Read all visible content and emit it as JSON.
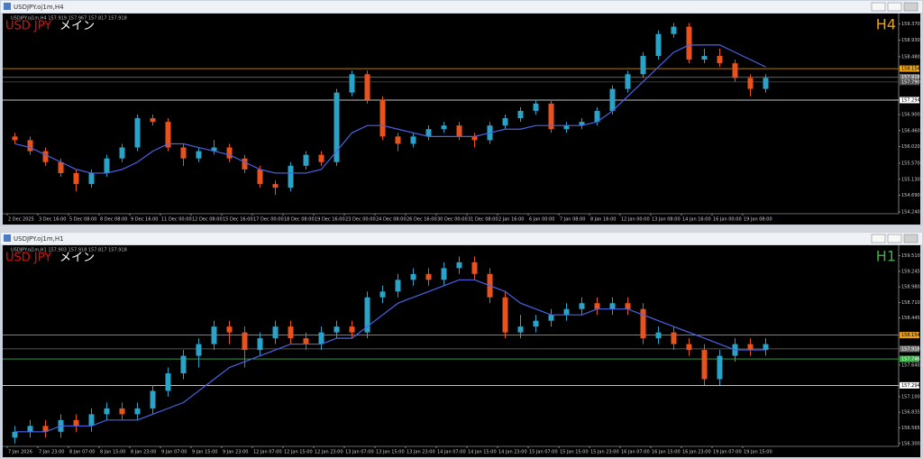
{
  "chart_data": [
    {
      "type": "candlestick",
      "window_title": "USDJPY.oj1m,H4",
      "info": "USDJPY.oj1m,H4  157.919 157.967 157.817 157.918",
      "symbol": "USD JPY",
      "label": "メイン",
      "timeframe": "H4",
      "timeframe_color": "#e8a21c",
      "up_color": "#2aa3c8",
      "down_color": "#e8521c",
      "ylim": [
        154.19,
        159.61
      ],
      "yticks": [
        {
          "value": 159.37,
          "label": "159.370"
        },
        {
          "value": 158.93,
          "label": "158.930"
        },
        {
          "value": 158.48,
          "label": "158.480"
        },
        {
          "value": 156.9,
          "label": "156.900"
        },
        {
          "value": 156.46,
          "label": "156.460"
        },
        {
          "value": 156.02,
          "label": "156.020"
        },
        {
          "value": 155.57,
          "label": "155.570"
        },
        {
          "value": 155.13,
          "label": "155.130"
        },
        {
          "value": 154.69,
          "label": "154.690"
        },
        {
          "value": 154.24,
          "label": "154.240"
        }
      ],
      "xticks": [
        {
          "value": 0,
          "label": "2 Dec 2025"
        },
        {
          "value": 2,
          "label": "3 Dec 16:00"
        },
        {
          "value": 4,
          "label": "5 Dec 08:00"
        },
        {
          "value": 6,
          "label": "8 Dec 08:00"
        },
        {
          "value": 8,
          "label": "9 Dec 16:00"
        },
        {
          "value": 10,
          "label": "11 Dec 00:00"
        },
        {
          "value": 12,
          "label": "12 Dec 08:00"
        },
        {
          "value": 14,
          "label": "15 Dec 16:00"
        },
        {
          "value": 16,
          "label": "17 Dec 00:00"
        },
        {
          "value": 18,
          "label": "18 Dec 08:00"
        },
        {
          "value": 20,
          "label": "19 Dec 16:00"
        },
        {
          "value": 22,
          "label": "23 Dec 00:00"
        },
        {
          "value": 24,
          "label": "24 Dec 08:00"
        },
        {
          "value": 26,
          "label": "26 Dec 16:00"
        },
        {
          "value": 28,
          "label": "30 Dec 00:00"
        },
        {
          "value": 30,
          "label": "31 Dec 08:00"
        },
        {
          "value": 32,
          "label": "2 Jan 16:00"
        },
        {
          "value": 34,
          "label": "6 Jan 00:00"
        },
        {
          "value": 36,
          "label": "7 Jan 08:00"
        },
        {
          "value": 38,
          "label": "8 Jan 16:00"
        },
        {
          "value": 40,
          "label": "12 Jan 00:00"
        },
        {
          "value": 42,
          "label": "13 Jan 08:00"
        },
        {
          "value": 44,
          "label": "14 Jan 16:00"
        },
        {
          "value": 46,
          "label": "16 Jan 00:00"
        },
        {
          "value": 48,
          "label": "19 Jan 08:00"
        }
      ],
      "candles": [
        [
          156.3,
          156.4,
          156.1,
          156.2
        ],
        [
          156.2,
          156.3,
          155.8,
          155.9
        ],
        [
          155.9,
          156.0,
          155.5,
          155.6
        ],
        [
          155.6,
          155.7,
          155.2,
          155.3
        ],
        [
          155.3,
          155.4,
          154.8,
          155.0
        ],
        [
          155.0,
          155.4,
          154.9,
          155.3
        ],
        [
          155.3,
          155.8,
          155.2,
          155.7
        ],
        [
          155.7,
          156.1,
          155.6,
          156.0
        ],
        [
          156.0,
          156.9,
          155.9,
          156.8
        ],
        [
          156.8,
          156.9,
          156.6,
          156.7
        ],
        [
          156.7,
          156.8,
          155.9,
          156.0
        ],
        [
          156.0,
          156.1,
          155.5,
          155.7
        ],
        [
          155.7,
          156.0,
          155.6,
          155.9
        ],
        [
          155.9,
          156.2,
          155.8,
          156.0
        ],
        [
          156.0,
          156.1,
          155.6,
          155.7
        ],
        [
          155.7,
          155.8,
          155.3,
          155.4
        ],
        [
          155.4,
          155.5,
          154.9,
          155.0
        ],
        [
          155.0,
          155.1,
          154.7,
          154.9
        ],
        [
          154.9,
          155.6,
          154.8,
          155.5
        ],
        [
          155.5,
          155.9,
          155.4,
          155.8
        ],
        [
          155.8,
          155.9,
          155.5,
          155.6
        ],
        [
          155.6,
          157.6,
          155.5,
          157.5
        ],
        [
          157.5,
          158.1,
          157.4,
          158.0
        ],
        [
          158.0,
          158.1,
          157.2,
          157.3
        ],
        [
          157.3,
          157.4,
          156.2,
          156.3
        ],
        [
          156.3,
          156.4,
          155.9,
          156.1
        ],
        [
          156.1,
          156.4,
          156.0,
          156.3
        ],
        [
          156.3,
          156.6,
          156.2,
          156.5
        ],
        [
          156.5,
          156.7,
          156.4,
          156.6
        ],
        [
          156.6,
          156.7,
          156.2,
          156.3
        ],
        [
          156.3,
          156.4,
          156.0,
          156.2
        ],
        [
          156.2,
          156.7,
          156.1,
          156.6
        ],
        [
          156.6,
          156.9,
          156.5,
          156.8
        ],
        [
          156.8,
          157.1,
          156.7,
          157.0
        ],
        [
          157.0,
          157.3,
          156.9,
          157.2
        ],
        [
          157.2,
          157.3,
          156.4,
          156.5
        ],
        [
          156.5,
          156.7,
          156.4,
          156.6
        ],
        [
          156.6,
          156.8,
          156.5,
          156.7
        ],
        [
          156.7,
          157.1,
          156.6,
          157.0
        ],
        [
          157.0,
          157.7,
          156.9,
          157.6
        ],
        [
          157.6,
          158.1,
          157.5,
          158.0
        ],
        [
          158.0,
          158.6,
          157.9,
          158.5
        ],
        [
          158.5,
          159.2,
          158.4,
          159.1
        ],
        [
          159.1,
          159.4,
          159.0,
          159.3
        ],
        [
          159.3,
          159.4,
          158.3,
          158.4
        ],
        [
          158.4,
          158.7,
          158.3,
          158.5
        ],
        [
          158.5,
          158.7,
          158.2,
          158.3
        ],
        [
          158.3,
          158.4,
          157.8,
          157.9
        ],
        [
          157.9,
          158.0,
          157.4,
          157.6
        ],
        [
          157.6,
          158.0,
          157.5,
          157.9
        ]
      ],
      "ma": {
        "color": "#4a63e6",
        "values": [
          156.1,
          156.0,
          155.8,
          155.6,
          155.4,
          155.3,
          155.3,
          155.4,
          155.6,
          155.9,
          156.1,
          156.1,
          156.0,
          155.9,
          155.8,
          155.6,
          155.4,
          155.3,
          155.3,
          155.3,
          155.4,
          155.9,
          156.4,
          156.6,
          156.6,
          156.5,
          156.4,
          156.3,
          156.3,
          156.3,
          156.3,
          156.4,
          156.5,
          156.5,
          156.6,
          156.6,
          156.6,
          156.6,
          156.7,
          157.0,
          157.4,
          157.8,
          158.2,
          158.6,
          158.8,
          158.8,
          158.8,
          158.6,
          158.4,
          158.2
        ]
      },
      "levels": [
        {
          "value": 158.154,
          "color": "#e8a21c"
        },
        {
          "value": 157.918,
          "color": "#707070"
        },
        {
          "value": 157.79,
          "label": "157.790",
          "color": "#505050"
        },
        {
          "value": 157.294,
          "color": "#ffffff"
        }
      ]
    },
    {
      "type": "candlestick",
      "window_title": "USDJPY.oj1m,H1",
      "info": "USDJPY.oj1m,H1  157.903 157.918 157.817 157.918",
      "symbol": "USD JPY",
      "label": "メイン",
      "timeframe": "H1",
      "timeframe_color": "#3dae4a",
      "up_color": "#2aa3c8",
      "down_color": "#e8521c",
      "ylim": [
        156.25,
        159.66
      ],
      "yticks": [
        {
          "value": 159.51,
          "label": "159.510"
        },
        {
          "value": 159.245,
          "label": "159.245"
        },
        {
          "value": 158.98,
          "label": "158.980"
        },
        {
          "value": 158.71,
          "label": "158.710"
        },
        {
          "value": 158.445,
          "label": "158.445"
        },
        {
          "value": 157.64,
          "label": "157.640"
        },
        {
          "value": 157.1,
          "label": "157.100"
        },
        {
          "value": 156.835,
          "label": "156.835"
        },
        {
          "value": 156.565,
          "label": "156.565"
        },
        {
          "value": 156.3,
          "label": "156.300"
        }
      ],
      "xticks": [
        {
          "value": 0,
          "label": "7 Jan 2026"
        },
        {
          "value": 2,
          "label": "7 Jan 23:00"
        },
        {
          "value": 4,
          "label": "8 Jan 07:00"
        },
        {
          "value": 6,
          "label": "8 Jan 15:00"
        },
        {
          "value": 8,
          "label": "8 Jan 23:00"
        },
        {
          "value": 10,
          "label": "9 Jan 07:00"
        },
        {
          "value": 12,
          "label": "9 Jan 15:00"
        },
        {
          "value": 14,
          "label": "9 Jan 23:00"
        },
        {
          "value": 16,
          "label": "12 Jan 07:00"
        },
        {
          "value": 18,
          "label": "12 Jan 15:00"
        },
        {
          "value": 20,
          "label": "12 Jan 23:00"
        },
        {
          "value": 22,
          "label": "13 Jan 07:00"
        },
        {
          "value": 24,
          "label": "13 Jan 15:00"
        },
        {
          "value": 26,
          "label": "13 Jan 23:00"
        },
        {
          "value": 28,
          "label": "14 Jan 07:00"
        },
        {
          "value": 30,
          "label": "14 Jan 15:00"
        },
        {
          "value": 32,
          "label": "14 Jan 23:00"
        },
        {
          "value": 34,
          "label": "15 Jan 07:00"
        },
        {
          "value": 36,
          "label": "15 Jan 15:00"
        },
        {
          "value": 38,
          "label": "15 Jan 23:00"
        },
        {
          "value": 40,
          "label": "16 Jan 07:00"
        },
        {
          "value": 42,
          "label": "16 Jan 15:00"
        },
        {
          "value": 44,
          "label": "16 Jan 23:00"
        },
        {
          "value": 46,
          "label": "19 Jan 07:00"
        },
        {
          "value": 48,
          "label": "19 Jan 15:00"
        }
      ],
      "candles": [
        [
          156.4,
          156.6,
          156.3,
          156.5
        ],
        [
          156.5,
          156.7,
          156.4,
          156.6
        ],
        [
          156.6,
          156.7,
          156.4,
          156.5
        ],
        [
          156.5,
          156.8,
          156.4,
          156.7
        ],
        [
          156.7,
          156.8,
          156.5,
          156.6
        ],
        [
          156.6,
          156.9,
          156.5,
          156.8
        ],
        [
          156.8,
          157.0,
          156.7,
          156.9
        ],
        [
          156.9,
          157.0,
          156.7,
          156.8
        ],
        [
          156.8,
          157.0,
          156.7,
          156.9
        ],
        [
          156.9,
          157.3,
          156.8,
          157.2
        ],
        [
          157.2,
          157.6,
          157.1,
          157.5
        ],
        [
          157.5,
          157.9,
          157.4,
          157.8
        ],
        [
          157.8,
          158.1,
          157.6,
          158.0
        ],
        [
          158.0,
          158.4,
          157.9,
          158.3
        ],
        [
          158.3,
          158.4,
          158.0,
          158.2
        ],
        [
          158.2,
          158.3,
          157.6,
          157.9
        ],
        [
          157.9,
          158.2,
          157.8,
          158.1
        ],
        [
          158.1,
          158.4,
          158.0,
          158.3
        ],
        [
          158.3,
          158.4,
          158.0,
          158.1
        ],
        [
          158.1,
          158.2,
          157.9,
          158.0
        ],
        [
          158.0,
          158.3,
          157.9,
          158.2
        ],
        [
          158.2,
          158.4,
          158.1,
          158.3
        ],
        [
          158.3,
          158.4,
          158.1,
          158.2
        ],
        [
          158.2,
          158.9,
          158.1,
          158.8
        ],
        [
          158.8,
          159.0,
          158.7,
          158.9
        ],
        [
          158.9,
          159.2,
          158.8,
          159.1
        ],
        [
          159.1,
          159.3,
          159.0,
          159.2
        ],
        [
          159.2,
          159.3,
          159.0,
          159.1
        ],
        [
          159.1,
          159.4,
          159.0,
          159.3
        ],
        [
          159.3,
          159.5,
          159.2,
          159.4
        ],
        [
          159.4,
          159.5,
          159.1,
          159.2
        ],
        [
          159.2,
          159.3,
          158.7,
          158.8
        ],
        [
          158.8,
          158.9,
          158.1,
          158.2
        ],
        [
          158.2,
          158.5,
          158.1,
          158.3
        ],
        [
          158.3,
          158.5,
          158.2,
          158.4
        ],
        [
          158.4,
          158.6,
          158.3,
          158.5
        ],
        [
          158.5,
          158.7,
          158.4,
          158.6
        ],
        [
          158.6,
          158.8,
          158.5,
          158.7
        ],
        [
          158.7,
          158.8,
          158.5,
          158.6
        ],
        [
          158.6,
          158.8,
          158.5,
          158.7
        ],
        [
          158.7,
          158.8,
          158.5,
          158.6
        ],
        [
          158.6,
          158.7,
          158.0,
          158.1
        ],
        [
          158.1,
          158.3,
          158.0,
          158.2
        ],
        [
          158.2,
          158.3,
          157.9,
          158.0
        ],
        [
          158.0,
          158.1,
          157.8,
          157.9
        ],
        [
          157.9,
          158.0,
          157.3,
          157.4
        ],
        [
          157.4,
          157.9,
          157.3,
          157.8
        ],
        [
          157.8,
          158.1,
          157.7,
          158.0
        ],
        [
          158.0,
          158.1,
          157.8,
          157.9
        ],
        [
          157.9,
          158.1,
          157.8,
          158.0
        ]
      ],
      "ma": {
        "color": "#4a63e6",
        "values": [
          156.5,
          156.5,
          156.5,
          156.6,
          156.6,
          156.6,
          156.7,
          156.7,
          156.7,
          156.8,
          156.9,
          157.0,
          157.2,
          157.4,
          157.6,
          157.7,
          157.8,
          157.9,
          158.0,
          158.0,
          158.0,
          158.1,
          158.1,
          158.3,
          158.5,
          158.7,
          158.8,
          158.9,
          159.0,
          159.1,
          159.1,
          159.0,
          158.9,
          158.7,
          158.6,
          158.5,
          158.5,
          158.5,
          158.6,
          158.6,
          158.6,
          158.5,
          158.4,
          158.3,
          158.2,
          158.1,
          158.0,
          157.9,
          157.9,
          157.9
        ]
      },
      "levels": [
        {
          "value": 158.154,
          "color": "#e8a21c"
        },
        {
          "value": 157.918,
          "color": "#707070"
        },
        {
          "value": 157.746,
          "color": "#3dae4a"
        },
        {
          "value": 157.294,
          "color": "#ffffff"
        }
      ]
    }
  ]
}
